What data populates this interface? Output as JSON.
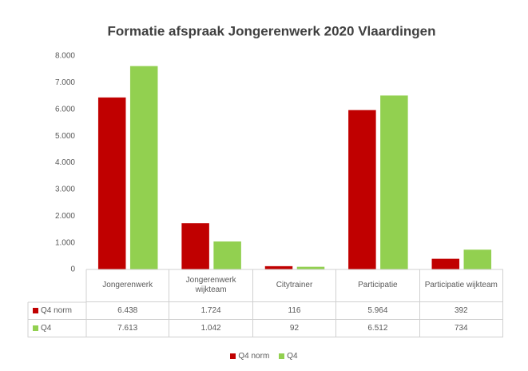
{
  "chart_data": {
    "type": "bar",
    "title": "Formatie afspraak Jongerenwerk 2020 Vlaardingen",
    "categories": [
      "Jongerenwerk",
      "Jongerenwerk wijkteam",
      "Citytrainer",
      "Participatie",
      "Participatie wijkteam"
    ],
    "series": [
      {
        "name": "Q4 norm",
        "color": "#c00000",
        "values": [
          6438,
          1724,
          116,
          5964,
          392
        ],
        "value_labels": [
          "6.438",
          "1.724",
          "116",
          "5.964",
          "392"
        ]
      },
      {
        "name": "Q4",
        "color": "#92d050",
        "values": [
          7613,
          1042,
          92,
          6512,
          734
        ],
        "value_labels": [
          "7.613",
          "1.042",
          "92",
          "6.512",
          "734"
        ]
      }
    ],
    "ylim": [
      0,
      8000
    ],
    "yticks": [
      0,
      {
        "value": 1000,
        "label": "1.000"
      },
      {
        "value": 2000,
        "label": "2.000"
      },
      {
        "value": 3000,
        "label": "3.000"
      },
      {
        "value": 4000,
        "label": "4.000"
      },
      {
        "value": 5000,
        "label": "5.000"
      },
      {
        "value": 6000,
        "label": "6.000"
      },
      {
        "value": 7000,
        "label": "7.000"
      },
      {
        "value": 8000,
        "label": "8.000"
      }
    ],
    "grid": false,
    "legend": "bottom"
  }
}
